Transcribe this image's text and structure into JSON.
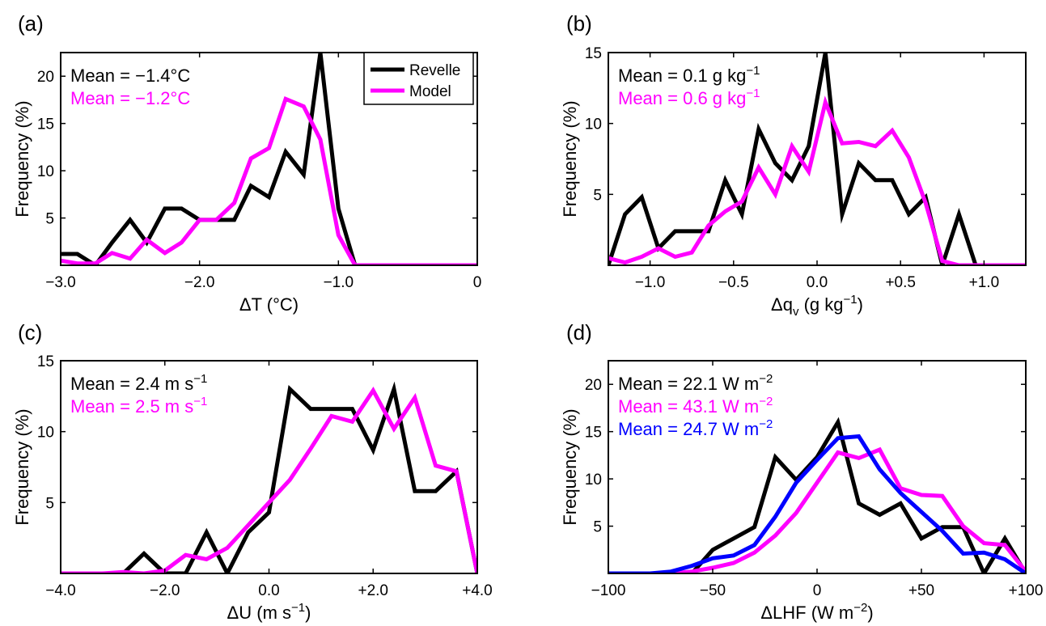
{
  "chart_data": [
    {
      "type": "line",
      "panel_label": "(a)",
      "xlabel": "ΔT (°C)",
      "ylabel": "Frequency (%)",
      "xlim": [
        -3.0,
        0
      ],
      "ylim": [
        0,
        22.5
      ],
      "xticks": [
        -3.0,
        -2.0,
        -1.0,
        0
      ],
      "xticklabels": [
        "−3.0",
        "−2.0",
        "−1.0",
        "0"
      ],
      "yticks": [
        5,
        10,
        15,
        20
      ],
      "yticklabels": [
        "5",
        "10",
        "15",
        "20"
      ],
      "legend": {
        "entries": [
          "Revelle",
          "Model"
        ],
        "position": "top-right"
      },
      "annotations": [
        "Mean = −1.4°C",
        "Mean = −1.2°C"
      ],
      "series": [
        {
          "name": "Revelle",
          "color": "#000000",
          "x": [
            -3.0,
            -2.88,
            -2.75,
            -2.63,
            -2.5,
            -2.38,
            -2.25,
            -2.13,
            -2.0,
            -1.88,
            -1.75,
            -1.63,
            -1.5,
            -1.38,
            -1.25,
            -1.13,
            -1.0,
            -0.88,
            -0.75,
            -0.63,
            -0.5,
            -0.38,
            -0.25,
            -0.13,
            0.0
          ],
          "y": [
            1.2,
            1.2,
            0.0,
            2.4,
            4.8,
            2.4,
            6.0,
            6.0,
            4.8,
            4.8,
            4.8,
            8.4,
            7.2,
            12.0,
            9.6,
            22.5,
            6.0,
            0.0,
            0.0,
            0.0,
            0.0,
            0.0,
            0.0,
            0.0,
            0.0
          ]
        },
        {
          "name": "Model",
          "color": "#ff00ff",
          "x": [
            -3.0,
            -2.88,
            -2.75,
            -2.63,
            -2.5,
            -2.38,
            -2.25,
            -2.13,
            -2.0,
            -1.88,
            -1.75,
            -1.63,
            -1.5,
            -1.38,
            -1.25,
            -1.13,
            -1.0,
            -0.88,
            -0.75,
            -0.63,
            -0.5,
            -0.38,
            -0.25,
            -0.13,
            0.0
          ],
          "y": [
            0.5,
            0.2,
            0.2,
            1.3,
            0.7,
            2.7,
            1.3,
            2.4,
            4.8,
            4.8,
            6.6,
            11.3,
            12.4,
            17.6,
            16.8,
            13.3,
            3.2,
            0.0,
            0.0,
            0.0,
            0.0,
            0.0,
            0.0,
            0.0,
            0.0
          ]
        }
      ]
    },
    {
      "type": "line",
      "panel_label": "(b)",
      "xlabel": "Δq_v (g kg⁻¹)",
      "ylabel": "Frequency (%)",
      "xlim": [
        -1.25,
        1.25
      ],
      "ylim": [
        0,
        15
      ],
      "xticks": [
        -1.0,
        -0.5,
        0.0,
        0.5,
        1.0
      ],
      "xticklabels": [
        "−1.0",
        "−0.5",
        "0.0",
        "+0.5",
        "+1.0"
      ],
      "yticks": [
        5,
        10,
        15
      ],
      "yticklabels": [
        "5",
        "10",
        "15"
      ],
      "annotations": [
        "Mean = 0.1 g kg⁻¹",
        "Mean = 0.6 g kg⁻¹"
      ],
      "series": [
        {
          "name": "Revelle",
          "color": "#000000",
          "x": [
            -1.25,
            -1.15,
            -1.05,
            -0.95,
            -0.85,
            -0.75,
            -0.65,
            -0.55,
            -0.45,
            -0.35,
            -0.25,
            -0.15,
            -0.05,
            0.05,
            0.15,
            0.25,
            0.35,
            0.45,
            0.55,
            0.65,
            0.75,
            0.85,
            0.95,
            1.05,
            1.15,
            1.25
          ],
          "y": [
            0.0,
            3.6,
            4.8,
            1.2,
            2.4,
            2.4,
            2.4,
            6.0,
            3.6,
            9.6,
            7.2,
            6.0,
            8.4,
            15.0,
            3.6,
            7.2,
            6.0,
            6.0,
            3.6,
            4.8,
            0.0,
            3.6,
            0.0,
            0.0,
            0.0,
            0.0
          ]
        },
        {
          "name": "Model",
          "color": "#ff00ff",
          "x": [
            -1.25,
            -1.15,
            -1.05,
            -0.95,
            -0.85,
            -0.75,
            -0.65,
            -0.55,
            -0.45,
            -0.35,
            -0.25,
            -0.15,
            -0.05,
            0.05,
            0.15,
            0.25,
            0.35,
            0.45,
            0.55,
            0.65,
            0.75,
            0.85,
            0.95,
            1.05,
            1.15,
            1.25
          ],
          "y": [
            0.5,
            0.2,
            0.6,
            1.2,
            0.6,
            0.9,
            2.8,
            3.8,
            4.5,
            6.9,
            5.0,
            8.4,
            6.6,
            11.5,
            8.6,
            8.7,
            8.4,
            9.5,
            7.6,
            4.4,
            0.3,
            0.0,
            0.0,
            0.0,
            0.0,
            0.0
          ]
        }
      ]
    },
    {
      "type": "line",
      "panel_label": "(c)",
      "xlabel": "ΔU (m s⁻¹)",
      "ylabel": "Frequency (%)",
      "xlim": [
        -4.0,
        4.0
      ],
      "ylim": [
        0,
        15
      ],
      "xticks": [
        -4.0,
        -2.0,
        0.0,
        2.0,
        4.0
      ],
      "xticklabels": [
        "−4.0",
        "−2.0",
        "0.0",
        "+2.0",
        "+4.0"
      ],
      "yticks": [
        5,
        10,
        15
      ],
      "yticklabels": [
        "5",
        "10",
        "15"
      ],
      "annotations": [
        "Mean = 2.4 m s⁻¹",
        "Mean = 2.5 m s⁻¹"
      ],
      "series": [
        {
          "name": "Revelle",
          "color": "#000000",
          "x": [
            -4.0,
            -3.6,
            -3.2,
            -2.8,
            -2.4,
            -2.0,
            -1.6,
            -1.2,
            -0.8,
            -0.4,
            0.0,
            0.4,
            0.8,
            1.2,
            1.6,
            2.0,
            2.4,
            2.8,
            3.2,
            3.6,
            4.0
          ],
          "y": [
            0.0,
            0.0,
            0.0,
            0.0,
            1.4,
            0.0,
            0.0,
            2.9,
            0.0,
            2.9,
            4.3,
            13.0,
            11.6,
            11.6,
            11.6,
            8.7,
            13.0,
            5.8,
            5.8,
            7.2,
            0.0
          ]
        },
        {
          "name": "Model",
          "color": "#ff00ff",
          "x": [
            -4.0,
            -3.6,
            -3.2,
            -2.8,
            -2.4,
            -2.0,
            -1.6,
            -1.2,
            -0.8,
            -0.4,
            0.0,
            0.4,
            0.8,
            1.2,
            1.6,
            2.0,
            2.4,
            2.8,
            3.2,
            3.6,
            4.0
          ],
          "y": [
            0.0,
            0.0,
            0.0,
            0.1,
            0.0,
            0.2,
            1.3,
            1.0,
            1.8,
            3.4,
            5.0,
            6.6,
            8.8,
            11.1,
            10.7,
            12.9,
            10.2,
            12.4,
            7.6,
            7.2,
            0.0
          ]
        }
      ]
    },
    {
      "type": "line",
      "panel_label": "(d)",
      "xlabel": "ΔLHF (W m⁻²)",
      "ylabel": "Frequency (%)",
      "xlim": [
        -100,
        100
      ],
      "ylim": [
        0,
        22.5
      ],
      "xticks": [
        -100,
        -50,
        0,
        50,
        100
      ],
      "xticklabels": [
        "−100",
        "−50",
        "0",
        "+50",
        "+100"
      ],
      "yticks": [
        5,
        10,
        15,
        20
      ],
      "yticklabels": [
        "5",
        "10",
        "15",
        "20"
      ],
      "annotations": [
        "Mean = 22.1 W m⁻²",
        "Mean = 43.1 W m⁻²",
        "Mean = 24.7 W m⁻²"
      ],
      "series": [
        {
          "name": "Revelle",
          "color": "#000000",
          "x": [
            -100,
            -90,
            -80,
            -70,
            -60,
            -50,
            -40,
            -30,
            -20,
            -10,
            0,
            10,
            20,
            30,
            40,
            50,
            60,
            70,
            80,
            90,
            100
          ],
          "y": [
            0.0,
            0.0,
            0.0,
            0.0,
            0.0,
            2.5,
            3.7,
            4.9,
            12.3,
            9.9,
            12.3,
            16.0,
            7.4,
            6.2,
            7.4,
            3.7,
            4.9,
            4.9,
            0.0,
            3.7,
            0.0
          ]
        },
        {
          "name": "Model",
          "color": "#ff00ff",
          "x": [
            -100,
            -90,
            -80,
            -70,
            -60,
            -50,
            -40,
            -30,
            -20,
            -10,
            0,
            10,
            20,
            30,
            40,
            50,
            60,
            70,
            80,
            90,
            100
          ],
          "y": [
            0.0,
            0.0,
            0.0,
            0.0,
            0.2,
            0.6,
            1.1,
            2.2,
            4.0,
            6.4,
            9.6,
            12.8,
            12.2,
            13.1,
            9.0,
            8.3,
            8.2,
            5.0,
            3.2,
            3.0,
            0.2
          ]
        },
        {
          "name": "",
          "color": "#0000ff",
          "x": [
            -100,
            -90,
            -80,
            -70,
            -60,
            -50,
            -40,
            -30,
            -20,
            -10,
            0,
            10,
            20,
            30,
            40,
            50,
            60,
            70,
            80,
            90,
            100
          ],
          "y": [
            0.0,
            0.0,
            0.0,
            0.2,
            0.8,
            1.6,
            1.9,
            3.0,
            6.0,
            9.6,
            12.0,
            14.3,
            14.5,
            11.0,
            8.5,
            6.5,
            4.5,
            2.1,
            2.2,
            1.5,
            0.0
          ]
        }
      ]
    }
  ]
}
